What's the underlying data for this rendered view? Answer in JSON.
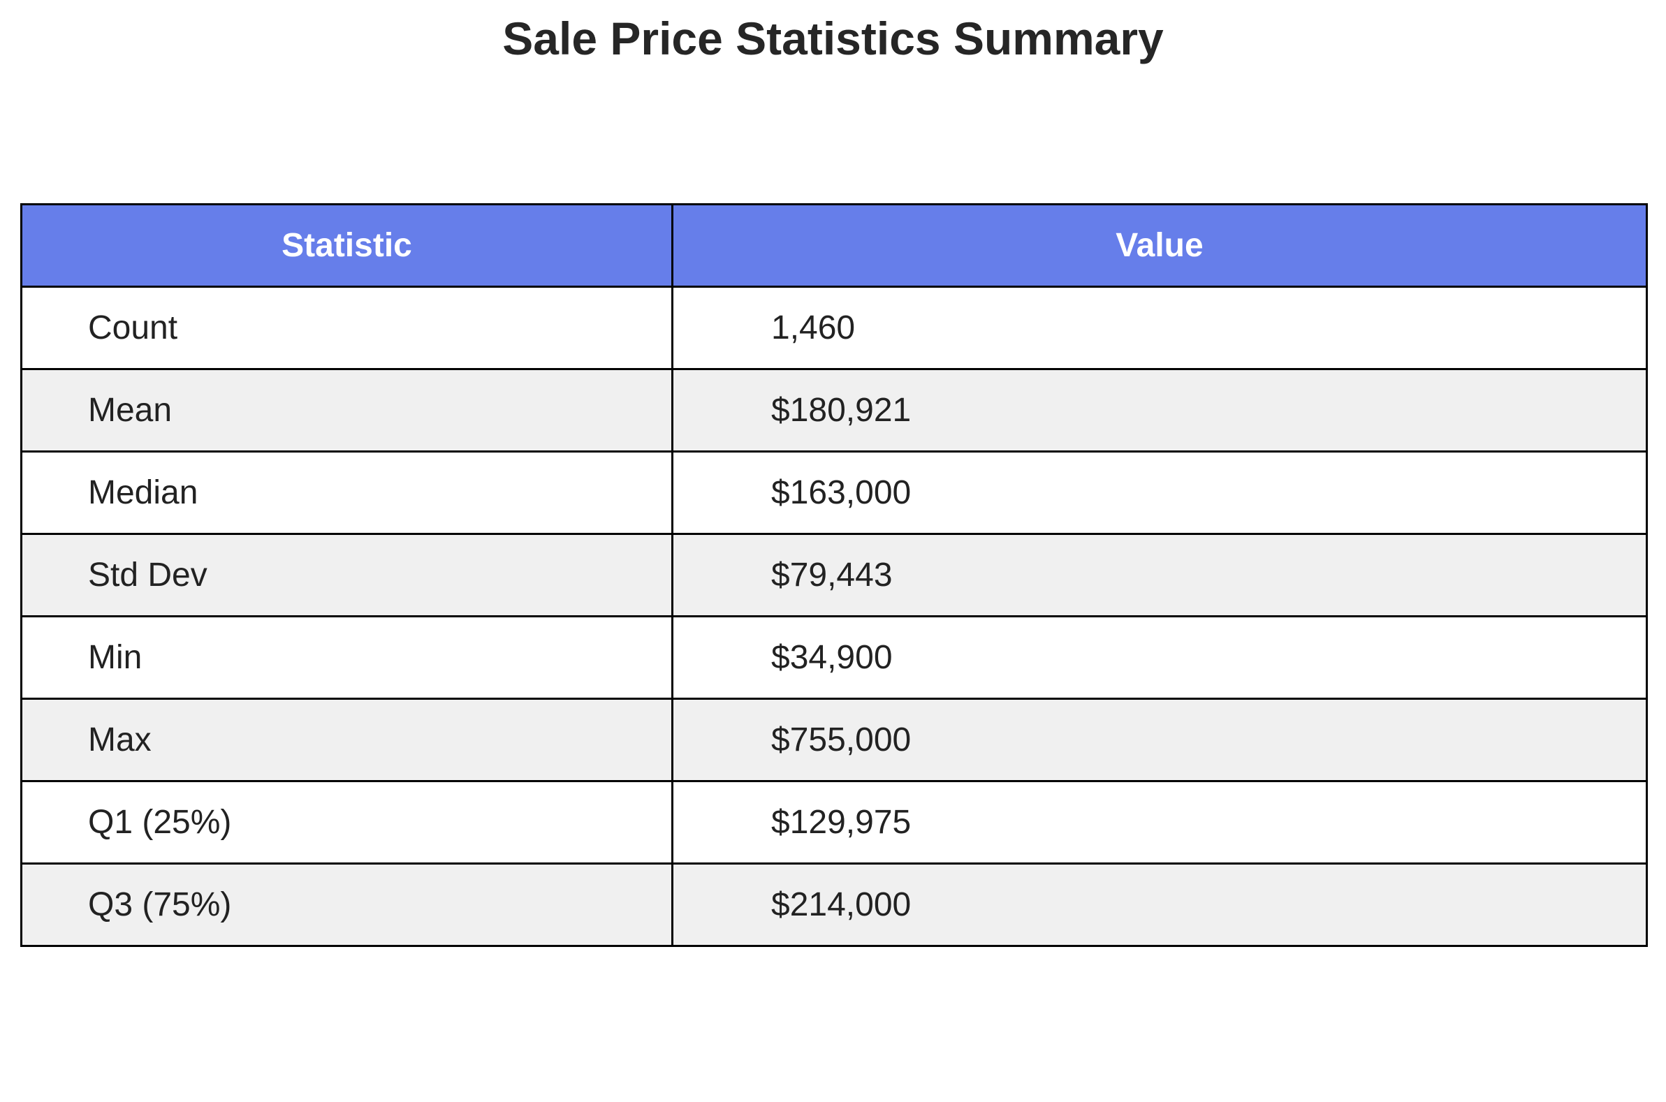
{
  "title": "Sale Price Statistics Summary",
  "colors": {
    "header_bg": "#667eea",
    "header_text": "#ffffff",
    "row_alt_bg": "#f0f0f0",
    "row_bg": "#ffffff",
    "border": "#000000"
  },
  "chart_data": {
    "type": "table",
    "title": "Sale Price Statistics Summary",
    "columns": [
      "Statistic",
      "Value"
    ],
    "rows": [
      [
        "Count",
        "1,460"
      ],
      [
        "Mean",
        "$180,921"
      ],
      [
        "Median",
        "$163,000"
      ],
      [
        "Std Dev",
        "$79,443"
      ],
      [
        "Min",
        "$34,900"
      ],
      [
        "Max",
        "$755,000"
      ],
      [
        "Q1 (25%)",
        "$129,975"
      ],
      [
        "Q3 (75%)",
        "$214,000"
      ]
    ]
  }
}
